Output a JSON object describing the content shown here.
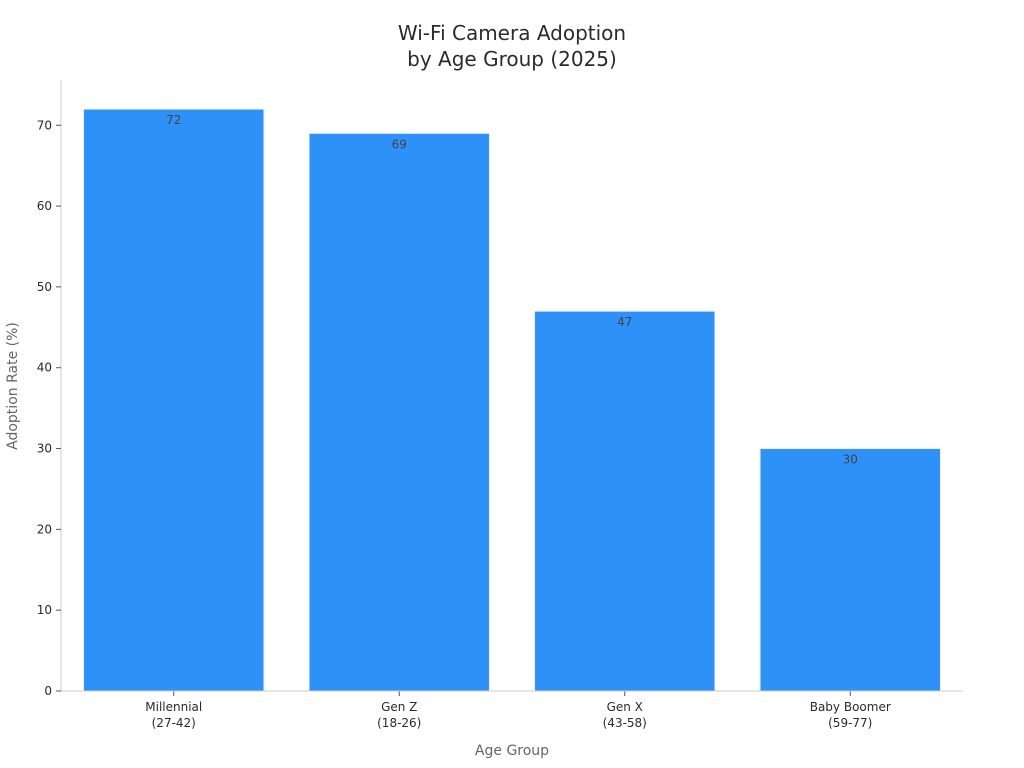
{
  "chart_data": {
    "type": "bar",
    "title_lines": [
      "Wi-Fi Camera Adoption",
      "by Age Group (2025)"
    ],
    "xlabel": "Age Group",
    "ylabel": "Adoption Rate (%)",
    "categories": [
      [
        "Millennial",
        "(27-42)"
      ],
      [
        "Gen Z",
        "(18-26)"
      ],
      [
        "Gen X",
        "(43-58)"
      ],
      [
        "Baby Boomer",
        "(59-77)"
      ]
    ],
    "values": [
      72,
      69,
      47,
      30
    ],
    "data_labels": [
      "72",
      "69",
      "47",
      "30"
    ],
    "ylim": [
      0,
      75.6
    ],
    "yticks": [
      0,
      10,
      20,
      30,
      40,
      50,
      60,
      70
    ],
    "ytick_labels": [
      "0",
      "10",
      "20",
      "30",
      "40",
      "50",
      "60",
      "70"
    ],
    "grid": false,
    "legend": "none",
    "colors": {
      "bar": "#2e91f8",
      "bar_edge": "#e8f0fa"
    }
  }
}
